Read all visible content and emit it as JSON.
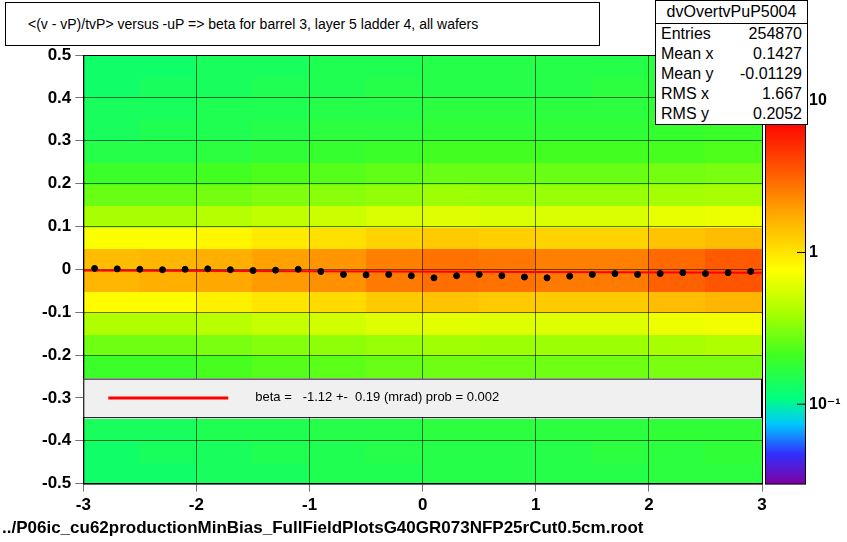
{
  "chart_data": {
    "type": "heatmap",
    "title": "<(v - vP)/tvP>  versus  -uP => beta for barrel 3, layer 5 ladder 4, all wafers",
    "annotations": [
      "../P06ic_cu62productionMinBias_FullFieldPlotsG40GR073NFP25rCut0.5cm.root"
    ],
    "stats_box": {
      "title": "dvOvertvPuP5004",
      "rows": [
        {
          "label": "Entries",
          "value": 254870
        },
        {
          "label": "Mean x",
          "value": 0.1427
        },
        {
          "label": "Mean y",
          "value": -0.01129
        },
        {
          "label": "RMS x",
          "value": 1.667
        },
        {
          "label": "RMS y",
          "value": 0.2052
        }
      ]
    },
    "xlim": [
      -3,
      3
    ],
    "xticks": [
      -3,
      -2,
      -1,
      0,
      1,
      2,
      3
    ],
    "ylim": [
      -0.5,
      0.5
    ],
    "yticks": [
      -0.5,
      -0.4,
      -0.3,
      -0.2,
      -0.1,
      0,
      0.1,
      0.2,
      0.3,
      0.4,
      0.5
    ],
    "grid": true,
    "series": [
      {
        "type": "scatter",
        "marker": "circle",
        "color": "#000000",
        "x": [
          -2.9,
          -2.7,
          -2.5,
          -2.3,
          -2.1,
          -1.9,
          -1.7,
          -1.5,
          -1.3,
          -1.1,
          -0.9,
          -0.7,
          -0.5,
          -0.3,
          -0.1,
          0.1,
          0.3,
          0.5,
          0.7,
          0.9,
          1.1,
          1.3,
          1.5,
          1.7,
          1.9,
          2.1,
          2.3,
          2.5,
          2.7,
          2.9
        ],
        "values": [
          0.002,
          0.001,
          0.0,
          -0.001,
          0.0,
          0.001,
          -0.001,
          -0.003,
          -0.002,
          0.0,
          -0.005,
          -0.012,
          -0.013,
          -0.012,
          -0.015,
          -0.02,
          -0.015,
          -0.012,
          -0.015,
          -0.018,
          -0.02,
          -0.016,
          -0.012,
          -0.01,
          -0.012,
          -0.01,
          -0.008,
          -0.01,
          -0.008,
          -0.005
        ]
      },
      {
        "type": "line",
        "line_style": "solid",
        "color": "#ff0000",
        "name": "beta =   -1.12 +-  0.19 (mrad) prob = 0.002",
        "x": [
          -3,
          3
        ],
        "values": [
          -0.003,
          -0.008
        ]
      }
    ],
    "heatmap": {
      "x_bins": [
        -3,
        -2.5,
        -2,
        -1.5,
        -1,
        -0.5,
        0,
        0.5,
        1,
        1.5,
        2,
        2.5,
        3
      ],
      "y_bins": [
        -0.5,
        -0.45,
        -0.4,
        -0.35,
        -0.3,
        -0.25,
        -0.2,
        -0.15,
        -0.1,
        -0.05,
        0,
        0.05,
        0.1,
        0.15,
        0.2,
        0.25,
        0.3,
        0.35,
        0.4,
        0.45,
        0.5
      ],
      "cells": [
        [
          0.13,
          0.13,
          0.14,
          0.14,
          0.15,
          0.15,
          0.16,
          0.16,
          0.16,
          0.16,
          0.17,
          0.17
        ],
        [
          0.13,
          0.14,
          0.14,
          0.15,
          0.15,
          0.16,
          0.16,
          0.16,
          0.16,
          0.17,
          0.17,
          0.18
        ],
        [
          0.14,
          0.14,
          0.15,
          0.15,
          0.16,
          0.16,
          0.17,
          0.17,
          0.17,
          0.17,
          0.18,
          0.18
        ],
        [
          null,
          null,
          null,
          null,
          null,
          null,
          null,
          null,
          null,
          null,
          null,
          null
        ],
        [
          null,
          null,
          null,
          null,
          null,
          null,
          null,
          null,
          null,
          null,
          null,
          null
        ],
        [
          0.2,
          0.2,
          0.22,
          0.24,
          0.25,
          0.27,
          0.28,
          0.28,
          0.28,
          0.28,
          0.3,
          0.3
        ],
        [
          0.28,
          0.28,
          0.3,
          0.32,
          0.34,
          0.36,
          0.38,
          0.37,
          0.37,
          0.37,
          0.4,
          0.42
        ],
        [
          0.42,
          0.42,
          0.45,
          0.5,
          0.55,
          0.6,
          0.62,
          0.6,
          0.6,
          0.6,
          0.68,
          0.7
        ],
        [
          0.8,
          0.8,
          0.9,
          1.0,
          1.1,
          1.3,
          1.4,
          1.3,
          1.3,
          1.3,
          1.5,
          1.6
        ],
        [
          1.6,
          1.7,
          1.8,
          2.0,
          2.2,
          2.6,
          2.9,
          2.8,
          2.6,
          2.6,
          3.2,
          3.6
        ],
        [
          1.5,
          1.6,
          1.7,
          1.9,
          2.1,
          2.5,
          2.8,
          2.7,
          2.5,
          2.5,
          3.0,
          3.4
        ],
        [
          0.75,
          0.75,
          0.85,
          0.95,
          1.05,
          1.2,
          1.3,
          1.25,
          1.2,
          1.2,
          1.4,
          1.5
        ],
        [
          0.4,
          0.4,
          0.44,
          0.48,
          0.52,
          0.58,
          0.6,
          0.58,
          0.58,
          0.58,
          0.65,
          0.68
        ],
        [
          0.27,
          0.27,
          0.29,
          0.31,
          0.33,
          0.35,
          0.37,
          0.36,
          0.36,
          0.36,
          0.39,
          0.4
        ],
        [
          0.2,
          0.2,
          0.21,
          0.23,
          0.24,
          0.26,
          0.27,
          0.27,
          0.27,
          0.27,
          0.29,
          0.3
        ],
        [
          0.16,
          0.16,
          0.17,
          0.18,
          0.19,
          0.2,
          0.21,
          0.21,
          0.21,
          0.21,
          0.22,
          0.23
        ],
        [
          0.14,
          0.15,
          0.15,
          0.16,
          0.17,
          0.17,
          0.18,
          0.18,
          0.18,
          0.18,
          0.19,
          0.2
        ],
        [
          0.14,
          0.14,
          0.15,
          0.15,
          0.16,
          0.16,
          0.17,
          0.17,
          0.17,
          0.17,
          0.18,
          0.19
        ],
        [
          0.13,
          0.14,
          0.14,
          0.15,
          0.15,
          0.16,
          0.16,
          0.16,
          0.16,
          0.17,
          0.17,
          0.18
        ],
        [
          0.13,
          0.13,
          0.14,
          0.14,
          0.15,
          0.15,
          0.16,
          0.16,
          0.16,
          0.16,
          0.17,
          0.17
        ]
      ]
    },
    "colorbar": {
      "log": true,
      "range": [
        0.03,
        20
      ],
      "ticks": [
        {
          "value": 0.1,
          "label": "10⁻¹"
        },
        1,
        10
      ]
    }
  }
}
